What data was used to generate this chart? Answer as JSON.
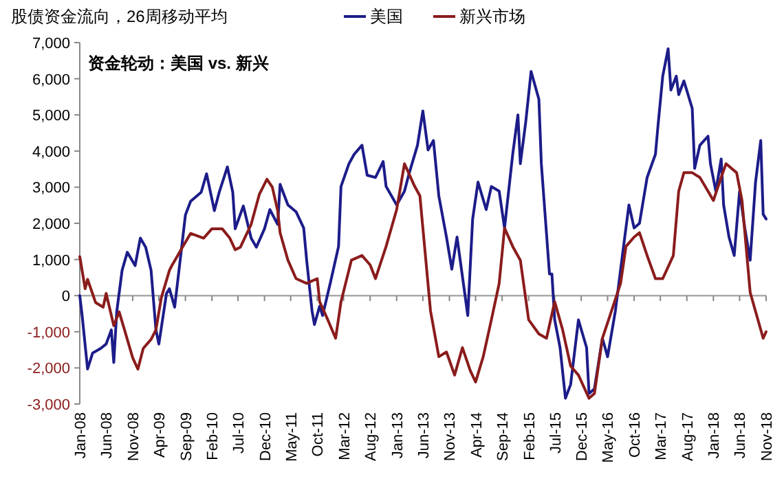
{
  "chart_data": {
    "type": "line",
    "title": "股债资金流向，26周移动平均",
    "subtitle": "资金轮动：美国 vs. 新兴",
    "legend": "top",
    "xlim": [
      "2008-01-01",
      "2018-11-01"
    ],
    "xticks": [
      {
        "value": "2008-01",
        "label": "Jan-08"
      },
      {
        "value": "2008-06",
        "label": "Jun-08"
      },
      {
        "value": "2008-11",
        "label": "Nov-08"
      },
      {
        "value": "2009-04",
        "label": "Apr-09"
      },
      {
        "value": "2009-09",
        "label": "Sep-09"
      },
      {
        "value": "2010-02",
        "label": "Feb-10"
      },
      {
        "value": "2010-07",
        "label": "Jul-10"
      },
      {
        "value": "2010-12",
        "label": "Dec-10"
      },
      {
        "value": "2011-05",
        "label": "May-11"
      },
      {
        "value": "2011-10",
        "label": "Oct-11"
      },
      {
        "value": "2012-03",
        "label": "Mar-12"
      },
      {
        "value": "2012-08",
        "label": "Aug-12"
      },
      {
        "value": "2013-01",
        "label": "Jan-13"
      },
      {
        "value": "2013-06",
        "label": "Jun-13"
      },
      {
        "value": "2013-11",
        "label": "Nov-13"
      },
      {
        "value": "2014-04",
        "label": "Apr-14"
      },
      {
        "value": "2014-09",
        "label": "Sep-14"
      },
      {
        "value": "2015-02",
        "label": "Feb-15"
      },
      {
        "value": "2015-07",
        "label": "Jul-15"
      },
      {
        "value": "2015-12",
        "label": "Dec-15"
      },
      {
        "value": "2016-05",
        "label": "May-16"
      },
      {
        "value": "2016-10",
        "label": "Oct-16"
      },
      {
        "value": "2017-03",
        "label": "Mar-17"
      },
      {
        "value": "2017-08",
        "label": "Aug-17"
      },
      {
        "value": "2018-01",
        "label": "Jan-18"
      },
      {
        "value": "2018-06",
        "label": "Jun-18"
      },
      {
        "value": "2018-11",
        "label": "Nov-18"
      }
    ],
    "ylim": [
      -3000,
      7000
    ],
    "yticks": [
      {
        "value": -3000,
        "label": "-3,000"
      },
      {
        "value": -2000,
        "label": "-2,000"
      },
      {
        "value": -1000,
        "label": "-1,000"
      },
      0,
      {
        "value": 1000,
        "label": "1,000"
      },
      {
        "value": 2000,
        "label": "2,000"
      },
      {
        "value": 3000,
        "label": "3,000"
      },
      {
        "value": 4000,
        "label": "4,000"
      },
      {
        "value": 5000,
        "label": "5,000"
      },
      {
        "value": 6000,
        "label": "6,000"
      },
      {
        "value": 7000,
        "label": "7,000"
      }
    ],
    "series": [
      {
        "name": "美国",
        "color": "#1c1c8a",
        "x": [
          "2008-01-01",
          "2008-01-15",
          "2008-02-15",
          "2008-03-15",
          "2008-05-01",
          "2008-06-01",
          "2008-07-01",
          "2008-07-15",
          "2008-08-01",
          "2008-09-01",
          "2008-10-01",
          "2008-11-15",
          "2008-12-15",
          "2009-01-15",
          "2009-02-15",
          "2009-03-15",
          "2009-04-01",
          "2009-05-15",
          "2009-06-01",
          "2009-07-01",
          "2009-08-01",
          "2009-09-01",
          "2009-10-01",
          "2009-12-01",
          "2010-01-01",
          "2010-02-15",
          "2010-03-15",
          "2010-05-01",
          "2010-06-01",
          "2010-06-15",
          "2010-08-01",
          "2010-09-15",
          "2010-10-15",
          "2010-12-01",
          "2011-01-01",
          "2011-02-15",
          "2011-03-01",
          "2011-04-15",
          "2011-06-01",
          "2011-07-15",
          "2011-08-01",
          "2011-09-01",
          "2011-09-15",
          "2011-10-15",
          "2011-11-01",
          "2011-12-15",
          "2012-02-01",
          "2012-02-15",
          "2012-04-01",
          "2012-05-01",
          "2012-06-15",
          "2012-07-15",
          "2012-09-01",
          "2012-10-15",
          "2012-11-01",
          "2013-01-01",
          "2013-02-15",
          "2013-03-15",
          "2013-05-01",
          "2013-06-01",
          "2013-07-01",
          "2013-08-01",
          "2013-09-01",
          "2013-10-15",
          "2013-11-15",
          "2013-12-15",
          "2014-02-15",
          "2014-03-15",
          "2014-04-15",
          "2014-06-01",
          "2014-07-01",
          "2014-08-15",
          "2014-09-15",
          "2014-11-01",
          "2014-12-01",
          "2014-12-15",
          "2015-01-15",
          "2015-02-15",
          "2015-04-01",
          "2015-04-15",
          "2015-06-01",
          "2015-06-15",
          "2015-07-01",
          "2015-08-01",
          "2015-09-01",
          "2015-10-01",
          "2015-11-15",
          "2016-01-01",
          "2016-01-15",
          "2016-02-15",
          "2016-04-01",
          "2016-05-01",
          "2016-06-15",
          "2016-08-01",
          "2016-09-01",
          "2016-10-01",
          "2016-11-01",
          "2016-12-15",
          "2017-02-01",
          "2017-02-15",
          "2017-03-15",
          "2017-04-15",
          "2017-05-01",
          "2017-06-01",
          "2017-06-15",
          "2017-07-15",
          "2017-09-01",
          "2017-09-15",
          "2017-10-15",
          "2017-12-01",
          "2017-12-15",
          "2018-01-15",
          "2018-02-15",
          "2018-03-01",
          "2018-04-01",
          "2018-05-01",
          "2018-06-01",
          "2018-07-01",
          "2018-08-01",
          "2018-09-01",
          "2018-10-01",
          "2018-10-15",
          "2018-11-01"
        ],
        "values": [
          0,
          -570,
          -2030,
          -1590,
          -1460,
          -1340,
          -950,
          -1850,
          -450,
          700,
          1200,
          830,
          1590,
          1340,
          700,
          -950,
          -1340,
          60,
          190,
          -320,
          950,
          2230,
          2610,
          2860,
          3370,
          2350,
          2860,
          3560,
          2860,
          1850,
          2480,
          1590,
          1340,
          1850,
          2380,
          1970,
          3080,
          2510,
          2320,
          1870,
          980,
          -420,
          -800,
          -290,
          -550,
          340,
          1360,
          3020,
          3650,
          3910,
          4160,
          3330,
          3270,
          3710,
          3020,
          2510,
          2890,
          3400,
          4160,
          5110,
          4030,
          4290,
          2760,
          1620,
          730,
          1620,
          -550,
          2120,
          3140,
          2380,
          3020,
          2890,
          1870,
          3910,
          5000,
          3650,
          4800,
          6200,
          5430,
          3650,
          600,
          600,
          -670,
          -1440,
          -2840,
          -2460,
          -670,
          -1440,
          -2710,
          -2580,
          -1180,
          -1690,
          -420,
          1360,
          2510,
          1870,
          2000,
          3270,
          3910,
          4670,
          6070,
          6830,
          5690,
          6070,
          5560,
          5940,
          5180,
          3520,
          4160,
          4410,
          3650,
          2890,
          3780,
          2510,
          1620,
          1110,
          2890,
          1870,
          980,
          3140,
          4290,
          2250,
          2120
        ]
      },
      {
        "name": "新兴市场",
        "color": "#8b1c1c",
        "x": [
          "2008-01-01",
          "2008-02-01",
          "2008-02-15",
          "2008-04-01",
          "2008-05-15",
          "2008-06-01",
          "2008-07-15",
          "2008-08-15",
          "2008-09-15",
          "2008-11-01",
          "2008-12-01",
          "2009-01-01",
          "2009-02-15",
          "2009-03-15",
          "2009-04-15",
          "2009-06-01",
          "2009-06-15",
          "2009-08-15",
          "2009-10-01",
          "2009-12-15",
          "2010-02-01",
          "2010-04-01",
          "2010-05-15",
          "2010-06-15",
          "2010-07-15",
          "2010-09-15",
          "2010-11-01",
          "2010-12-15",
          "2011-01-15",
          "2011-02-15",
          "2011-03-01",
          "2011-04-15",
          "2011-06-01",
          "2011-08-01",
          "2011-10-01",
          "2011-10-15",
          "2011-12-01",
          "2012-01-15",
          "2012-02-15",
          "2012-04-15",
          "2012-06-15",
          "2012-08-01",
          "2012-09-01",
          "2012-11-01",
          "2013-01-01",
          "2013-02-15",
          "2013-04-15",
          "2013-05-15",
          "2013-07-15",
          "2013-09-01",
          "2013-10-15",
          "2013-12-01",
          "2014-01-15",
          "2014-03-01",
          "2014-04-01",
          "2014-05-15",
          "2014-07-01",
          "2014-08-15",
          "2014-09-15",
          "2014-11-01",
          "2014-12-15",
          "2015-02-01",
          "2015-04-01",
          "2015-05-15",
          "2015-07-01",
          "2015-08-15",
          "2015-10-01",
          "2015-11-15",
          "2016-01-15",
          "2016-02-15",
          "2016-04-01",
          "2016-05-15",
          "2016-07-15",
          "2016-08-15",
          "2016-10-01",
          "2016-11-01",
          "2016-12-15",
          "2017-02-01",
          "2017-03-15",
          "2017-05-15",
          "2017-06-15",
          "2017-07-15",
          "2017-09-01",
          "2017-10-15",
          "2017-12-01",
          "2018-01-01",
          "2018-02-15",
          "2018-03-15",
          "2018-05-15",
          "2018-06-15",
          "2018-08-01",
          "2018-09-15",
          "2018-10-15",
          "2018-11-01"
        ],
        "values": [
          1080,
          190,
          450,
          -190,
          -320,
          60,
          -830,
          -450,
          -950,
          -1720,
          -2035,
          -1460,
          -1210,
          -950,
          -60,
          700,
          830,
          1340,
          1720,
          1590,
          1850,
          1850,
          1590,
          1270,
          1340,
          1970,
          2800,
          3220,
          3000,
          2350,
          1740,
          980,
          470,
          340,
          470,
          -170,
          -670,
          -1180,
          -170,
          980,
          1110,
          850,
          470,
          1360,
          2380,
          3650,
          3020,
          2760,
          -420,
          -1690,
          -1560,
          -2200,
          -1440,
          -2070,
          -2390,
          -1690,
          -670,
          340,
          1870,
          1360,
          980,
          -670,
          -1060,
          -1180,
          -170,
          -930,
          -1950,
          -2200,
          -2840,
          -2710,
          -1180,
          -550,
          340,
          1360,
          1620,
          1740,
          1110,
          470,
          470,
          1110,
          2890,
          3400,
          3400,
          3270,
          2890,
          2630,
          3270,
          3650,
          3400,
          2630,
          90,
          -670,
          -1180,
          -1000
        ]
      }
    ]
  }
}
